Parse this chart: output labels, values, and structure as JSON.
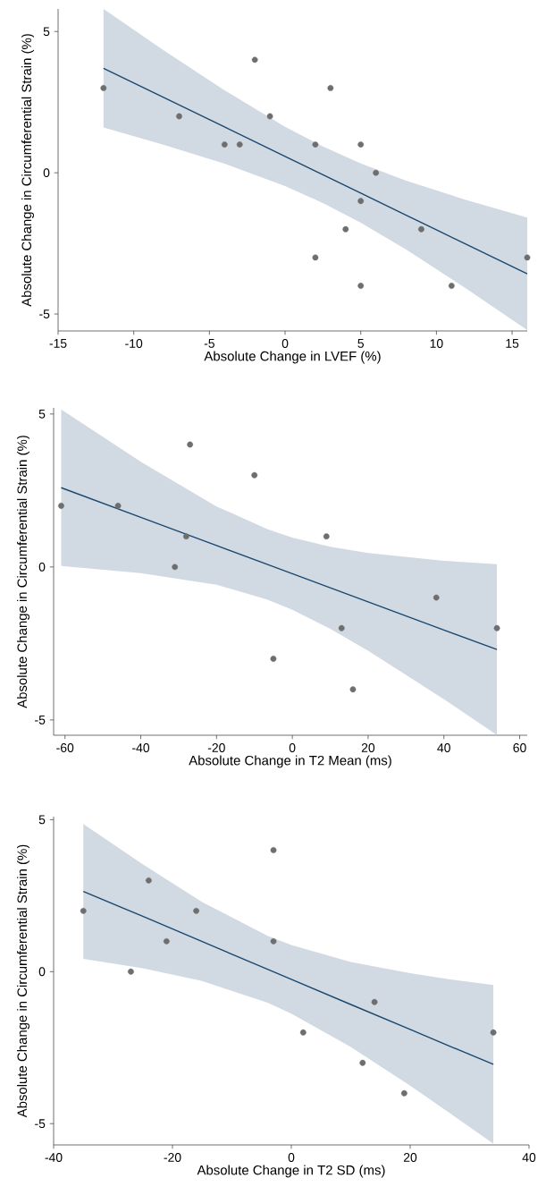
{
  "chart_data": [
    {
      "type": "scatter",
      "xlabel": "Absolute Change in LVEF (%)",
      "ylabel": "Absolute Change in Circumferential Strain (%)",
      "xlim": [
        -15,
        16
      ],
      "ylim": [
        -5.6,
        5.8
      ],
      "xticks": [
        -15,
        -10,
        -5,
        0,
        5,
        10,
        15
      ],
      "yticks": [
        -5,
        0,
        5
      ],
      "grid": false,
      "series": [
        {
          "color": "#6e6e6e",
          "marker": "circle",
          "x": [
            -12,
            -7,
            -4,
            -3,
            -2,
            -1,
            2,
            2,
            3,
            4,
            5,
            5,
            5,
            6,
            9,
            11,
            16
          ],
          "values": [
            3,
            2,
            1,
            1,
            4,
            2,
            1,
            -3,
            3,
            -2,
            1,
            -1,
            -4,
            0,
            -2,
            -4,
            -3
          ]
        },
        {
          "type": "line",
          "color": "#1a476f",
          "marker": "none",
          "x": [
            -12,
            -8,
            -4,
            0,
            2.5,
            5,
            8,
            12,
            16
          ],
          "values": [
            3.7,
            2.66,
            1.62,
            0.58,
            -0.07,
            -0.72,
            -1.5,
            -2.54,
            -3.58
          ],
          "upper": [
            5.8,
            4.33,
            2.92,
            1.63,
            0.93,
            0.33,
            -0.28,
            -0.97,
            -1.59
          ],
          "lower": [
            1.6,
            0.99,
            0.32,
            -0.47,
            -1.07,
            -1.77,
            -2.72,
            -4.11,
            -5.57
          ]
        }
      ]
    },
    {
      "type": "scatter",
      "xlabel": "Absolute Change in T2 Mean (ms)",
      "ylabel": "Absolute Change in Circumferential Strain (%)",
      "xlim": [
        -63,
        62
      ],
      "ylim": [
        -5.5,
        5.2
      ],
      "xticks": [
        -60,
        -40,
        -20,
        0,
        20,
        40,
        60
      ],
      "yticks": [
        -5,
        0,
        5
      ],
      "grid": false,
      "series": [
        {
          "color": "#6e6e6e",
          "marker": "circle",
          "x": [
            -61,
            -46,
            -31,
            -28,
            -27,
            -10,
            -5,
            9,
            13,
            16,
            38,
            54
          ],
          "values": [
            2,
            2,
            0,
            1,
            4,
            3,
            -3,
            1,
            -2,
            -4,
            -1,
            -2
          ]
        },
        {
          "type": "line",
          "color": "#1a476f",
          "marker": "none",
          "x": [
            -61,
            -40,
            -20,
            -6.5,
            0,
            10,
            20,
            40,
            54
          ],
          "values": [
            2.59,
            1.62,
            0.7,
            0.08,
            -0.22,
            -0.68,
            -1.14,
            -2.06,
            -2.7
          ],
          "upper": [
            5.15,
            3.44,
            1.98,
            1.23,
            0.96,
            0.66,
            0.46,
            0.2,
            0.09
          ],
          "lower": [
            0.03,
            -0.2,
            -0.58,
            -1.07,
            -1.4,
            -2.02,
            -2.74,
            -4.32,
            -5.49
          ]
        }
      ]
    },
    {
      "type": "scatter",
      "xlabel": "Absolute Change in T2 SD (ms)",
      "ylabel": "Absolute Change in Circumferential Strain (%)",
      "xlim": [
        -40,
        40
      ],
      "ylim": [
        -5.7,
        5.1
      ],
      "xticks": [
        -40,
        -20,
        0,
        20,
        40
      ],
      "yticks": [
        -5,
        0,
        5
      ],
      "grid": false,
      "series": [
        {
          "color": "#6e6e6e",
          "marker": "circle",
          "x": [
            -35,
            -27,
            -24,
            -21,
            -16,
            -3,
            -3,
            2,
            12,
            14,
            19,
            34
          ],
          "values": [
            2,
            0,
            3,
            1,
            2,
            4,
            1,
            -2,
            -3,
            -1,
            -4,
            -2
          ]
        },
        {
          "type": "line",
          "color": "#1a476f",
          "marker": "none",
          "x": [
            -35,
            -25,
            -15,
            -4,
            0,
            10,
            20,
            27,
            34
          ],
          "values": [
            2.64,
            1.82,
            0.99,
            0.08,
            -0.25,
            -1.08,
            -1.9,
            -2.48,
            -3.05
          ],
          "upper": [
            4.86,
            3.53,
            2.29,
            1.18,
            0.88,
            0.32,
            -0.05,
            -0.26,
            -0.44
          ],
          "lower": [
            0.42,
            0.11,
            -0.31,
            -1.02,
            -1.38,
            -2.48,
            -3.75,
            -4.7,
            -5.66
          ]
        }
      ]
    }
  ]
}
